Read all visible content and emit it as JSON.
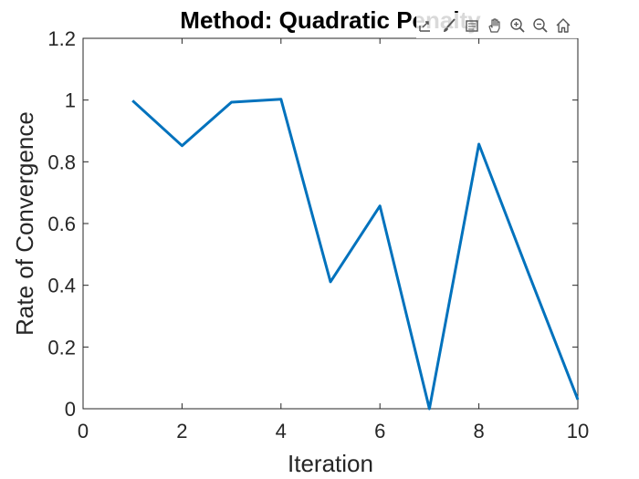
{
  "chart_data": {
    "type": "line",
    "title": "Method: Quadratic Penalty",
    "xlabel": "Iteration",
    "ylabel": "Rate of Convergence",
    "xlim": [
      0,
      10
    ],
    "ylim": [
      0,
      1.2
    ],
    "xticks": [
      0,
      2,
      4,
      6,
      8,
      10
    ],
    "yticks": [
      0,
      0.2,
      0.4,
      0.6,
      0.8,
      1,
      1.2
    ],
    "xtick_labels": [
      "0",
      "2",
      "4",
      "6",
      "8",
      "10"
    ],
    "ytick_labels": [
      "0",
      "0.2",
      "0.4",
      "0.6",
      "0.8",
      "1",
      "1.2"
    ],
    "grid": false,
    "series": [
      {
        "x": [
          1,
          2,
          3,
          4,
          5,
          6,
          7,
          8,
          9,
          10
        ],
        "values": [
          0.998,
          0.852,
          0.993,
          1.003,
          0.411,
          0.657,
          0.0,
          0.857,
          0.44,
          0.03
        ],
        "color": "#0072BD"
      }
    ]
  },
  "toolbar": {
    "icons": [
      "export-icon",
      "brush-icon",
      "datatip-icon",
      "pan-hand-icon",
      "zoom-in-icon",
      "zoom-out-icon",
      "home-icon"
    ]
  }
}
